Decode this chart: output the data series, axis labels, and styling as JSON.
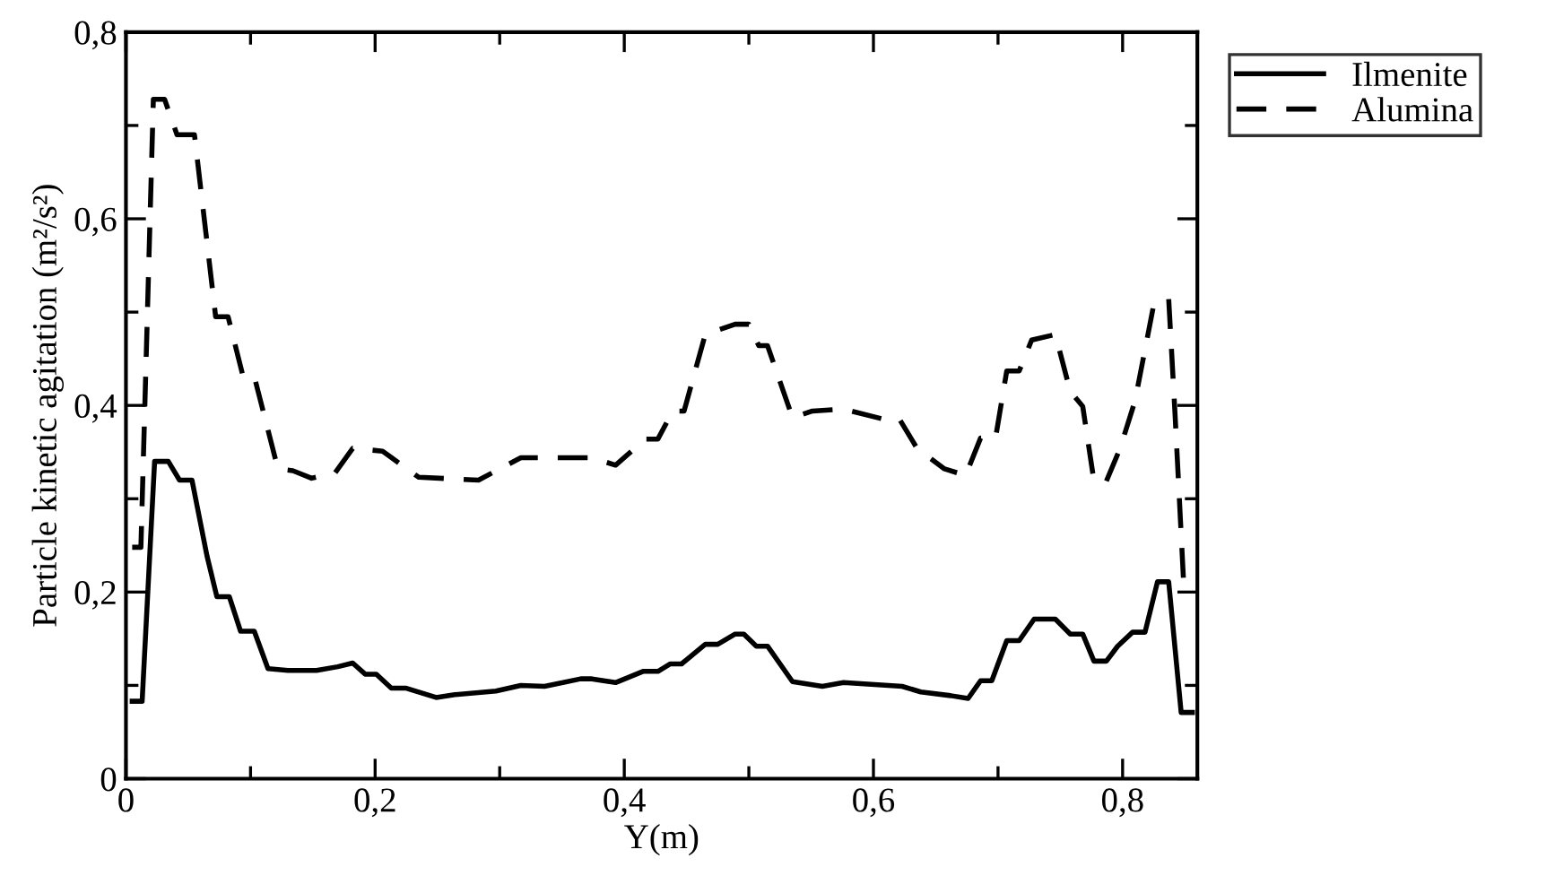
{
  "chart_data": {
    "type": "line",
    "xlabel": "Y(m)",
    "ylabel": "Particle kinetic agitation (m²/s²)",
    "xlim": [
      0,
      0.86
    ],
    "ylim": [
      0,
      0.8
    ],
    "xticks": [
      {
        "value": 0,
        "label": "0"
      },
      {
        "value": 0.1,
        "label": null
      },
      {
        "value": 0.2,
        "label": "0,2"
      },
      {
        "value": 0.3,
        "label": null
      },
      {
        "value": 0.4,
        "label": "0,4"
      },
      {
        "value": 0.5,
        "label": null
      },
      {
        "value": 0.6,
        "label": "0,6"
      },
      {
        "value": 0.7,
        "label": null
      },
      {
        "value": 0.8,
        "label": "0,8"
      }
    ],
    "yticks": [
      {
        "value": 0,
        "label": "0"
      },
      {
        "value": 0.1,
        "label": null
      },
      {
        "value": 0.2,
        "label": "0,2"
      },
      {
        "value": 0.3,
        "label": null
      },
      {
        "value": 0.4,
        "label": "0,4"
      },
      {
        "value": 0.5,
        "label": null
      },
      {
        "value": 0.6,
        "label": "0,6"
      },
      {
        "value": 0.7,
        "label": null
      },
      {
        "value": 0.8,
        "label": "0,8"
      }
    ],
    "legend": "top right",
    "grid": false,
    "marker": "none",
    "series": [
      {
        "name": "Ilmenite",
        "color": "#000000",
        "line_style": "solid",
        "x": [
          0.005,
          0.013,
          0.023,
          0.034,
          0.043,
          0.053,
          0.065,
          0.073,
          0.083,
          0.092,
          0.103,
          0.114,
          0.13,
          0.153,
          0.17,
          0.182,
          0.192,
          0.201,
          0.213,
          0.225,
          0.249,
          0.264,
          0.297,
          0.317,
          0.336,
          0.365,
          0.374,
          0.393,
          0.415,
          0.427,
          0.437,
          0.446,
          0.465,
          0.475,
          0.489,
          0.496,
          0.506,
          0.515,
          0.535,
          0.559,
          0.576,
          0.623,
          0.638,
          0.662,
          0.676,
          0.686,
          0.695,
          0.707,
          0.717,
          0.729,
          0.746,
          0.758,
          0.768,
          0.777,
          0.787,
          0.796,
          0.808,
          0.818,
          0.828,
          0.837,
          0.847,
          0.856
        ],
        "values": [
          0.083,
          0.083,
          0.34,
          0.34,
          0.32,
          0.32,
          0.239,
          0.195,
          0.195,
          0.158,
          0.158,
          0.118,
          0.116,
          0.116,
          0.12,
          0.124,
          0.112,
          0.112,
          0.097,
          0.097,
          0.087,
          0.09,
          0.094,
          0.1,
          0.099,
          0.107,
          0.107,
          0.103,
          0.115,
          0.115,
          0.123,
          0.123,
          0.144,
          0.144,
          0.155,
          0.155,
          0.142,
          0.142,
          0.104,
          0.099,
          0.103,
          0.099,
          0.093,
          0.089,
          0.086,
          0.105,
          0.105,
          0.148,
          0.148,
          0.171,
          0.171,
          0.155,
          0.155,
          0.126,
          0.126,
          0.142,
          0.157,
          0.157,
          0.211,
          0.211,
          0.071,
          0.071
        ]
      },
      {
        "name": "Alumina",
        "color": "#000000",
        "line_style": "dashed",
        "x": [
          0.005,
          0.012,
          0.022,
          0.031,
          0.041,
          0.055,
          0.072,
          0.082,
          0.094,
          0.103,
          0.122,
          0.134,
          0.149,
          0.168,
          0.182,
          0.206,
          0.235,
          0.283,
          0.317,
          0.374,
          0.393,
          0.417,
          0.427,
          0.439,
          0.448,
          0.465,
          0.489,
          0.5,
          0.508,
          0.515,
          0.535,
          0.551,
          0.576,
          0.609,
          0.621,
          0.635,
          0.657,
          0.674,
          0.686,
          0.698,
          0.707,
          0.717,
          0.727,
          0.746,
          0.758,
          0.768,
          0.777,
          0.787,
          0.798,
          0.81,
          0.825,
          0.837,
          0.842,
          0.849
        ],
        "values": [
          0.248,
          0.248,
          0.728,
          0.728,
          0.69,
          0.69,
          0.495,
          0.495,
          0.431,
          0.431,
          0.332,
          0.33,
          0.322,
          0.328,
          0.354,
          0.351,
          0.323,
          0.32,
          0.344,
          0.344,
          0.336,
          0.364,
          0.364,
          0.394,
          0.394,
          0.476,
          0.487,
          0.487,
          0.464,
          0.464,
          0.387,
          0.394,
          0.396,
          0.385,
          0.385,
          0.354,
          0.332,
          0.325,
          0.365,
          0.365,
          0.437,
          0.437,
          0.47,
          0.476,
          0.415,
          0.399,
          0.319,
          0.319,
          0.354,
          0.405,
          0.508,
          0.514,
          0.393,
          0.21
        ]
      }
    ]
  }
}
